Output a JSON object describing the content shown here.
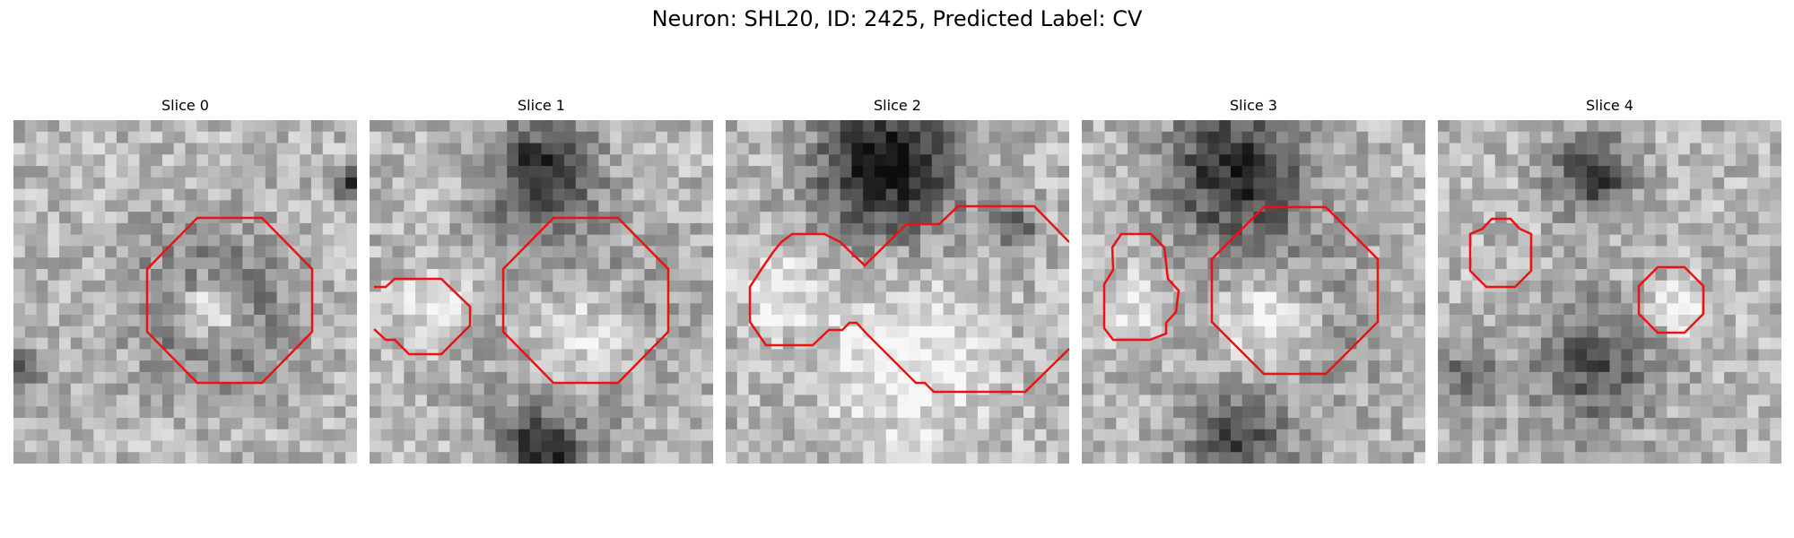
{
  "figure": {
    "title": "Neuron: SHL20, ID: 2425, Predicted Label: CV"
  },
  "panels": [
    {
      "title": "Slice 0",
      "image": "grayscale electron micrograph slice, one large octagonal red contour centered on a dark ring"
    },
    {
      "title": "Slice 1",
      "image": "grayscale electron micrograph slice, dark blob at top, large octagonal red contour on right, partial red contour at left edge"
    },
    {
      "title": "Slice 2",
      "image": "grayscale electron micrograph slice, dark region at top, large bright vesicle, irregular red contours"
    },
    {
      "title": "Slice 3",
      "image": "grayscale electron micrograph slice, dark region at top, small red contour left, large octagonal red contour right"
    },
    {
      "title": "Slice 4",
      "image": "grayscale electron micrograph slice, two small red octagonal contours"
    }
  ],
  "colors": {
    "contour": "#ee1111"
  }
}
